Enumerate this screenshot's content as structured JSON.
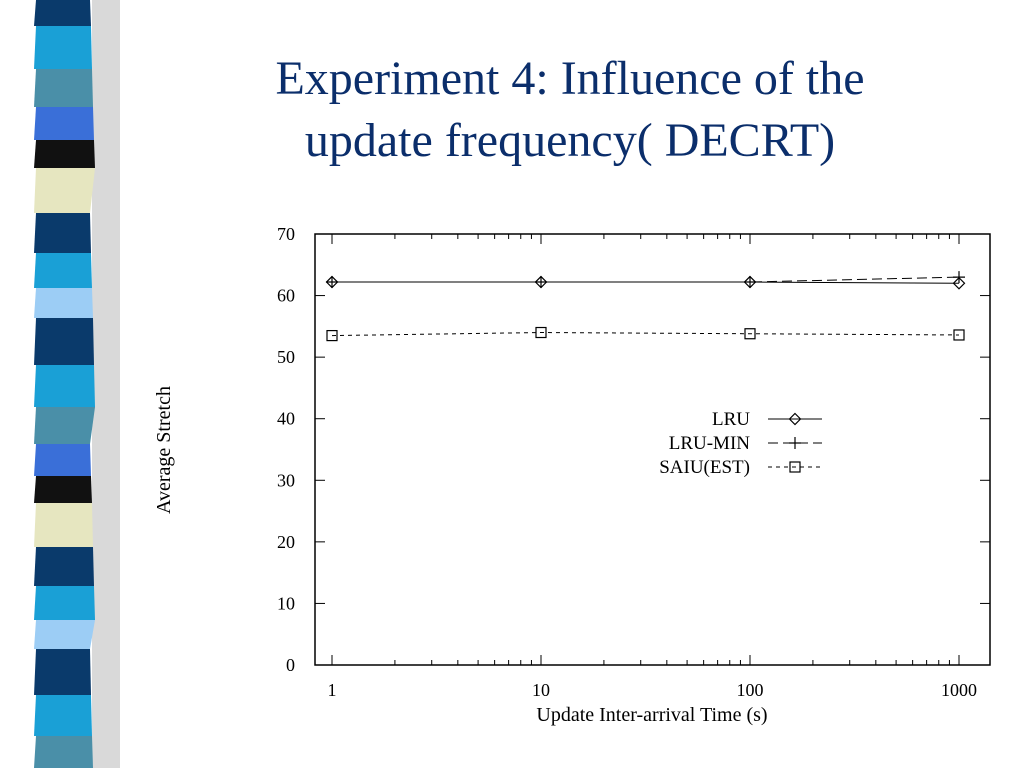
{
  "slide": {
    "title_line1": "Experiment 4: Influence of the",
    "title_line2": "update frequency( DECRT)"
  },
  "decoration": {
    "stripe_colors": [
      "#0a3a6b",
      "#1aa0d6",
      "#4a8fa8",
      "#3a6fd8",
      "#111111",
      "#e6e6c0",
      "#0a3a6b",
      "#1aa0d6",
      "#9ccdf5"
    ]
  },
  "chart_data": {
    "type": "line",
    "xscale": "log",
    "x": [
      1,
      10,
      100,
      1000
    ],
    "xticks": [
      "1",
      "10",
      "100",
      "1000"
    ],
    "yticks": [
      "0",
      "10",
      "20",
      "30",
      "40",
      "50",
      "60",
      "70"
    ],
    "xlim": [
      1,
      1000
    ],
    "ylim": [
      0,
      70
    ],
    "xlabel": "Update Inter-arrival Time (s)",
    "ylabel": "Average Stretch",
    "legend_position": "right-middle",
    "series": [
      {
        "name": "LRU",
        "marker": "diamond",
        "dash": "solid",
        "values": [
          62.2,
          62.2,
          62.2,
          62.0
        ]
      },
      {
        "name": "LRU-MIN",
        "marker": "plus",
        "dash": "long-dash",
        "values": [
          62.2,
          62.2,
          62.2,
          63.0
        ]
      },
      {
        "name": "SAIU(EST)",
        "marker": "square",
        "dash": "short-dash",
        "values": [
          53.5,
          54.0,
          53.8,
          53.6
        ]
      }
    ]
  }
}
